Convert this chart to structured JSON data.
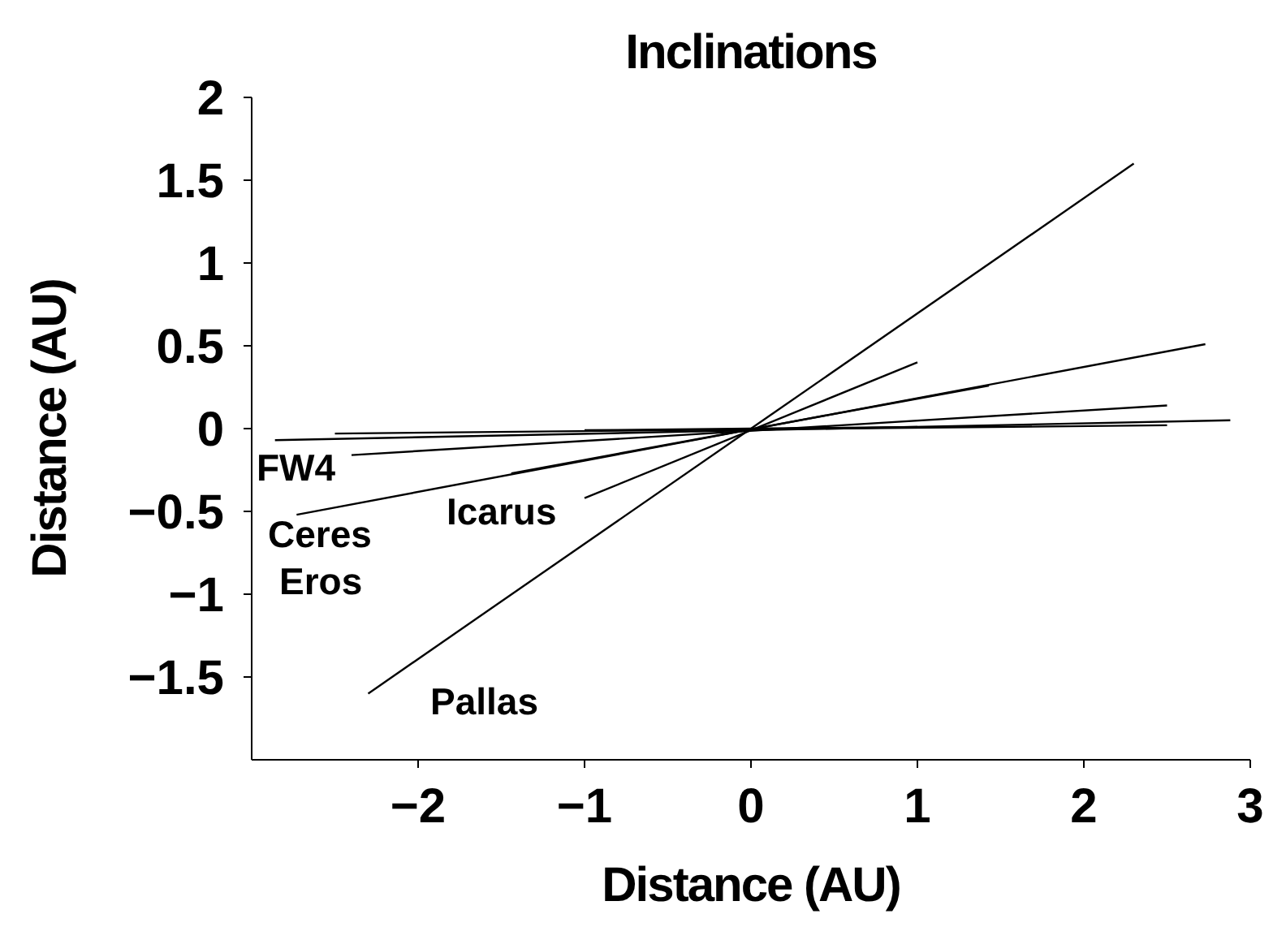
{
  "chart_data": {
    "type": "line",
    "title": "Inclinations",
    "xlabel": "Distance (AU)",
    "ylabel": "Distance (AU)",
    "xlim": [
      -3,
      3
    ],
    "ylim": [
      -2,
      2
    ],
    "xticks": [
      -2,
      -1,
      0,
      1,
      2,
      3
    ],
    "yticks": [
      -1.5,
      -1,
      -0.5,
      0,
      0.5,
      1,
      1.5,
      2
    ],
    "grid": false,
    "marker": "none",
    "line_style": "solid",
    "series": [
      {
        "color": "#000000",
        "x": [
          -2.3,
          2.3
        ],
        "values": [
          -1.6,
          1.6
        ]
      },
      {
        "color": "#000000",
        "x": [
          -1,
          1
        ],
        "values": [
          -0.42,
          0.4
        ]
      },
      {
        "color": "#000000",
        "x": [
          -2.73,
          2.73
        ],
        "values": [
          -0.52,
          0.51
        ]
      },
      {
        "color": "#000000",
        "x": [
          -1.44,
          1.43
        ],
        "values": [
          -0.27,
          0.26
        ]
      },
      {
        "color": "#000000",
        "x": [
          -2.86,
          2.88
        ],
        "values": [
          -0.07,
          0.05
        ]
      },
      {
        "color": "#000000",
        "x": [
          -2.4,
          2.5
        ],
        "values": [
          -0.16,
          0.14
        ]
      },
      {
        "color": "#000000",
        "x": [
          -2.5,
          2.5
        ],
        "values": [
          -0.03,
          0.02
        ]
      },
      {
        "color": "#000000",
        "x": [
          -1,
          1
        ],
        "values": [
          -0.01,
          0.01
        ]
      }
    ],
    "annotations": [
      "FW4",
      "Ceres",
      "Eros",
      "Icarus",
      "Pallas"
    ]
  }
}
